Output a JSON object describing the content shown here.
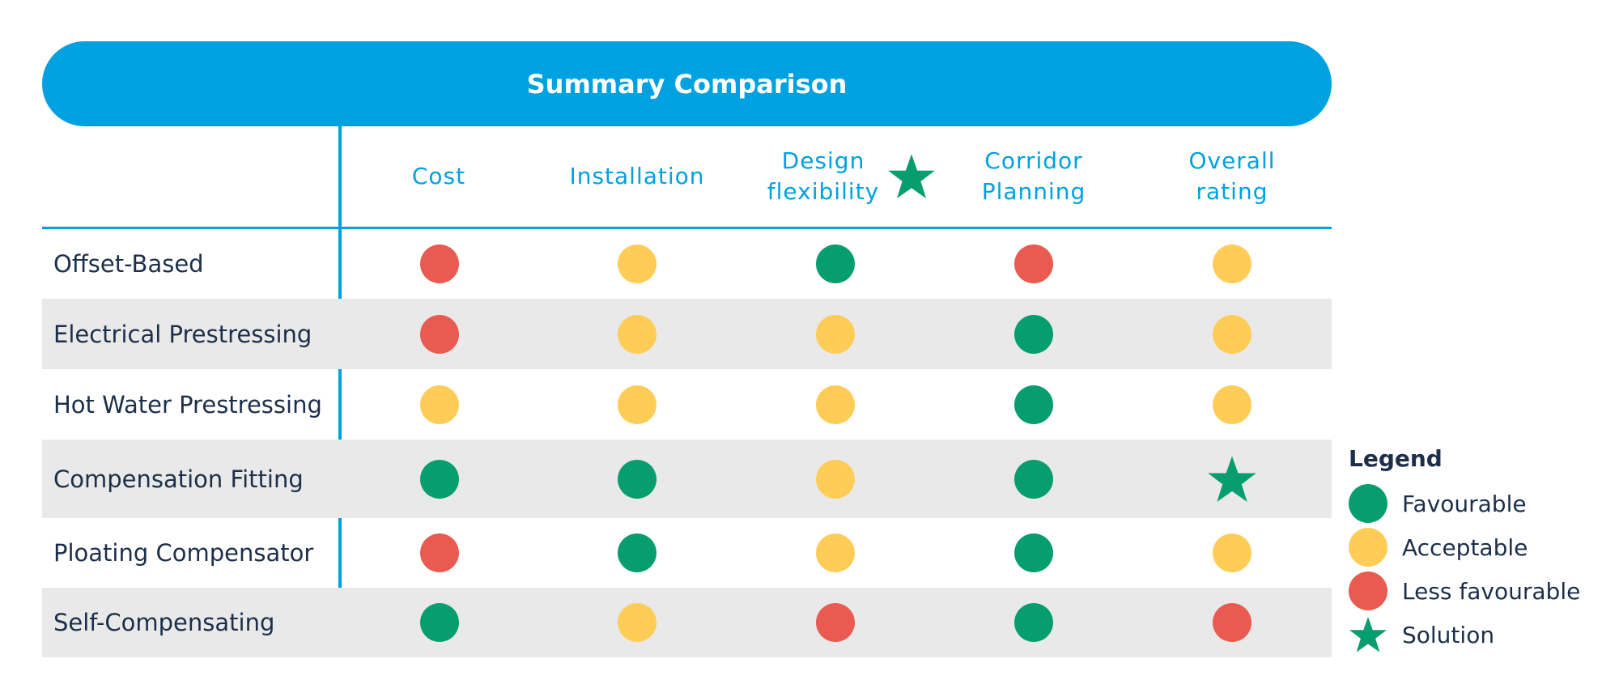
{
  "title": "Summary Comparison",
  "columns": [
    {
      "key": "cost",
      "label": "Cost"
    },
    {
      "key": "installation",
      "label": "Installation"
    },
    {
      "key": "design",
      "label_line1": "Design",
      "label_line2": "flexibility",
      "star_icon": "star-icon"
    },
    {
      "key": "corridor",
      "label_line1": "Corridor",
      "label_line2": "Planning"
    },
    {
      "key": "overall",
      "label_line1": "Overall",
      "label_line2": "rating"
    }
  ],
  "colors": {
    "favourable": "#069e6e",
    "acceptable": "#ffcd57",
    "less_favourable": "#e95a50",
    "solution": "#069e6e",
    "accent": "#00a1e0"
  },
  "rows": [
    {
      "label": "Offset-Based",
      "ratings": [
        "less_favourable",
        "acceptable",
        "favourable",
        "less_favourable",
        "acceptable"
      ]
    },
    {
      "label": "Electrical Prestressing",
      "ratings": [
        "less_favourable",
        "acceptable",
        "acceptable",
        "favourable",
        "acceptable"
      ]
    },
    {
      "label": "Hot Water Prestressing",
      "ratings": [
        "acceptable",
        "acceptable",
        "acceptable",
        "favourable",
        "acceptable"
      ]
    },
    {
      "label": "Compensation Fitting",
      "ratings": [
        "favourable",
        "favourable",
        "acceptable",
        "favourable",
        "solution"
      ]
    },
    {
      "label": "Ploating Compensator",
      "ratings": [
        "less_favourable",
        "favourable",
        "acceptable",
        "favourable",
        "acceptable"
      ]
    },
    {
      "label": "Self-Compensating",
      "ratings": [
        "favourable",
        "acceptable",
        "less_favourable",
        "favourable",
        "less_favourable"
      ]
    }
  ],
  "legend": {
    "title": "Legend",
    "items": [
      {
        "key": "favourable",
        "label": "Favourable"
      },
      {
        "key": "acceptable",
        "label": "Acceptable"
      },
      {
        "key": "less_favourable",
        "label": "Less favourable"
      },
      {
        "key": "solution",
        "label": "Solution"
      }
    ]
  }
}
